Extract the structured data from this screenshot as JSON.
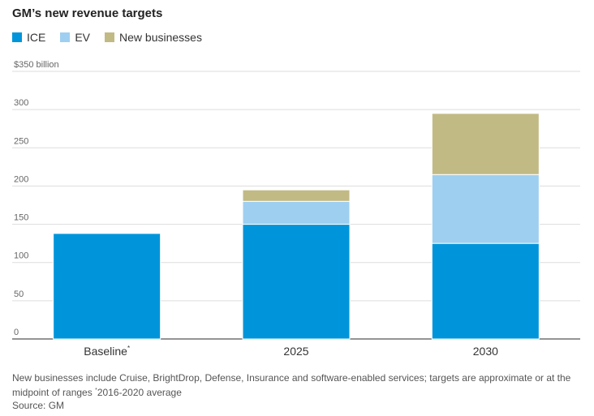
{
  "title": "GM’s new revenue targets",
  "legend": [
    {
      "name": "ICE",
      "color": "#0095da"
    },
    {
      "name": "EV",
      "color": "#9ecff0"
    },
    {
      "name": "New businesses",
      "color": "#c2ba85"
    }
  ],
  "chart_data": {
    "type": "bar",
    "stacked": true,
    "categories": [
      "Baseline",
      "2025",
      "2030"
    ],
    "category_superscripts": [
      "*",
      "",
      ""
    ],
    "series": [
      {
        "name": "ICE",
        "values": [
          138,
          150,
          125
        ],
        "color": "#0095da"
      },
      {
        "name": "EV",
        "values": [
          0,
          30,
          90
        ],
        "color": "#9ecff0"
      },
      {
        "name": "New businesses",
        "values": [
          0,
          15,
          80
        ],
        "color": "#c2ba85"
      }
    ],
    "yticks": [
      0,
      50,
      100,
      150,
      200,
      250,
      300,
      350
    ],
    "ytick_labels": [
      "0",
      "50",
      "100",
      "150",
      "200",
      "250",
      "300",
      "$350 billion"
    ],
    "ylim": [
      0,
      350
    ],
    "grid": true
  },
  "footnote": {
    "text": "New businesses include Cruise, BrightDrop, Defense, Insurance and software-enabled services; targets are approximate or at the midpoint of ranges",
    "marker": "*",
    "note": "2016-2020 average"
  },
  "source": "Source: GM"
}
